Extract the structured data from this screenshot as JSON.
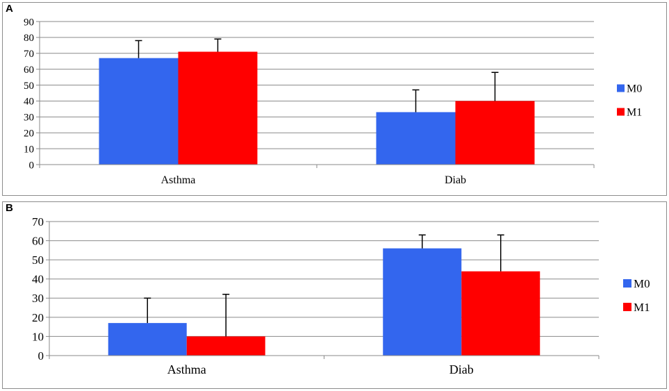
{
  "colors": {
    "M0": "#3366ee",
    "M1": "#ff0000",
    "grid": "#8a8a8a",
    "error_bar": "#000000"
  },
  "panels": [
    {
      "label": "A"
    },
    {
      "label": "B"
    }
  ],
  "chart_data": [
    {
      "type": "bar",
      "title": "",
      "xlabel": "",
      "ylabel": "",
      "categories": [
        "Asthma",
        "Diab"
      ],
      "series": [
        {
          "name": "M0",
          "values": [
            67,
            33
          ],
          "error": [
            11,
            14
          ]
        },
        {
          "name": "M1",
          "values": [
            71,
            40
          ],
          "error": [
            8,
            18
          ]
        }
      ],
      "ylim": [
        0,
        90
      ],
      "yticks": [
        0,
        10,
        20,
        30,
        40,
        50,
        60,
        70,
        80,
        90
      ],
      "grid": true,
      "legend": "right"
    },
    {
      "type": "bar",
      "title": "",
      "xlabel": "",
      "ylabel": "",
      "categories": [
        "Asthma",
        "Diab"
      ],
      "series": [
        {
          "name": "M0",
          "values": [
            17,
            56
          ],
          "error": [
            13,
            7
          ]
        },
        {
          "name": "M1",
          "values": [
            10,
            44
          ],
          "error": [
            22,
            19
          ]
        }
      ],
      "ylim": [
        0,
        70
      ],
      "yticks": [
        0,
        10,
        20,
        30,
        40,
        50,
        60,
        70
      ],
      "grid": true,
      "legend": "right"
    }
  ]
}
